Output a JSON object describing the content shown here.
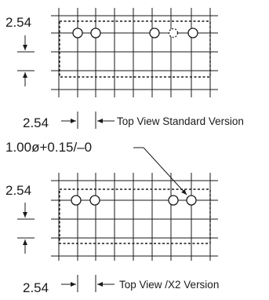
{
  "views": [
    {
      "pitch_label_top": "2.54",
      "pitch_label_bottom": "2.54",
      "caption": "Top View Standard Version"
    },
    {
      "hole_callout": "1.00ø+0.15/–0",
      "pitch_label_top": "2.54",
      "pitch_label_bottom": "2.54",
      "caption": "Top View /X2 Version"
    }
  ]
}
